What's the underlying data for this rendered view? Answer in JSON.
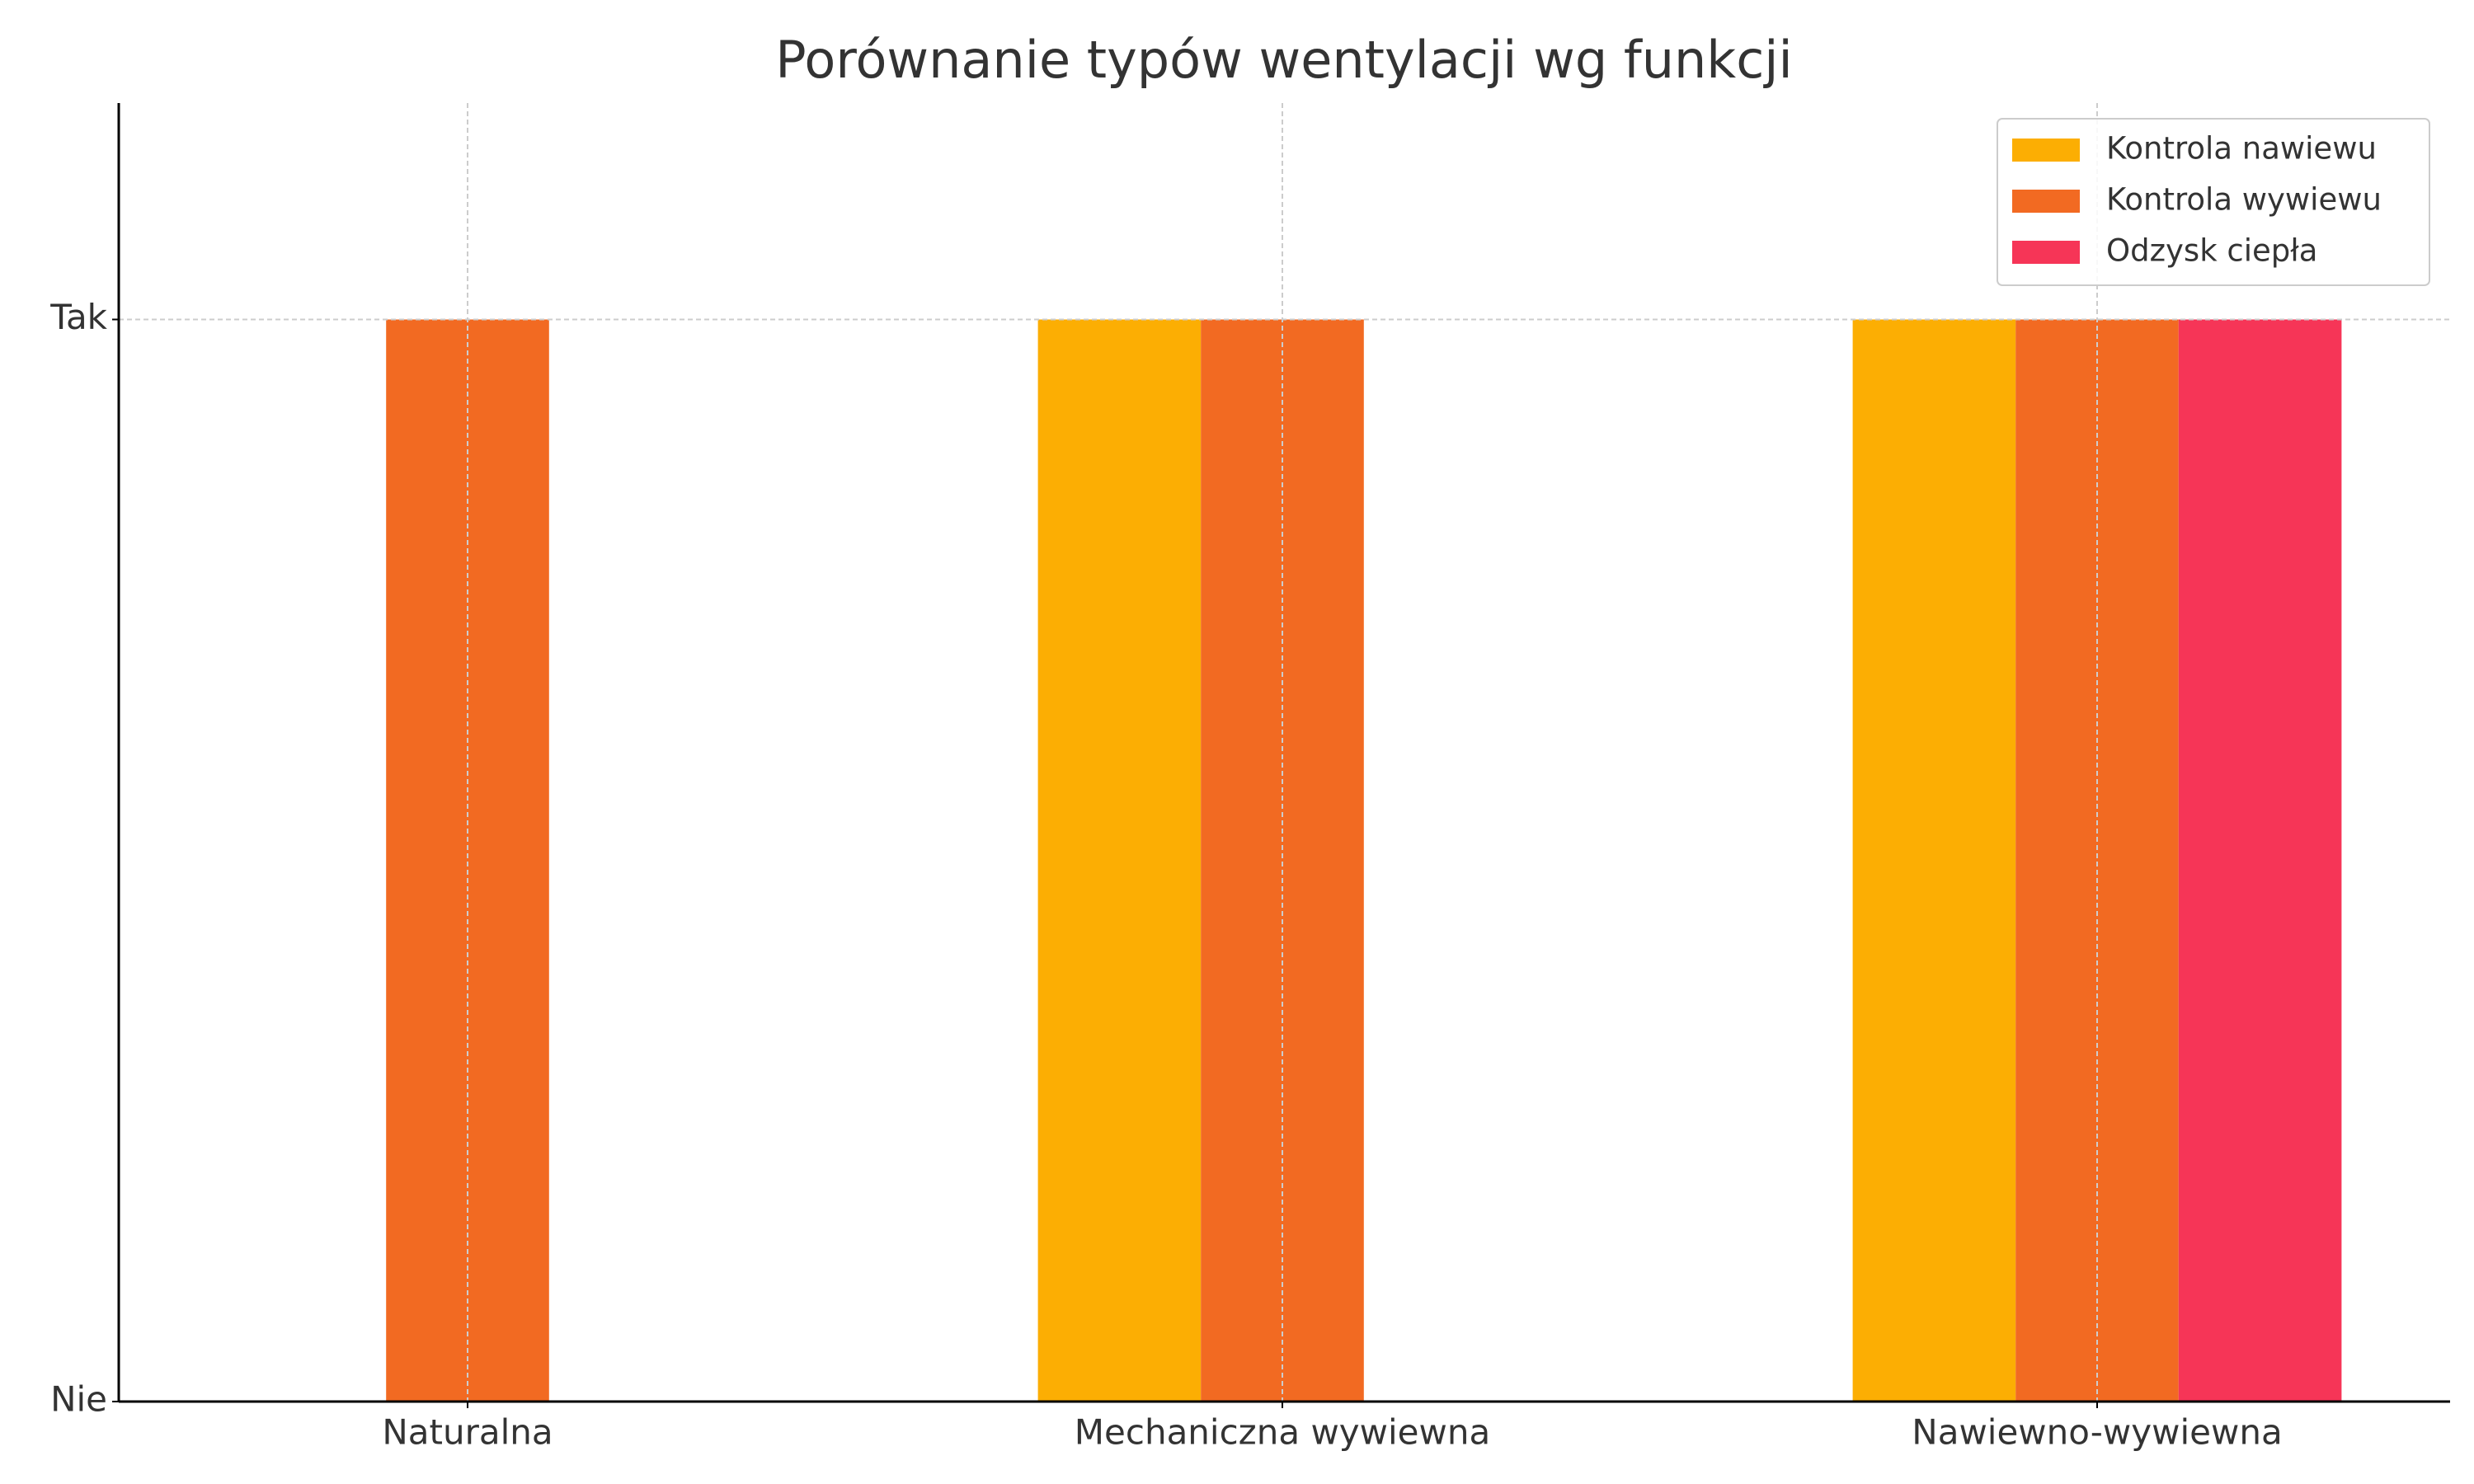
{
  "chart_data": {
    "type": "bar",
    "title": "Porównanie typów wentylacji wg funkcji",
    "categories": [
      "Naturalna",
      "Mechaniczna wywiewna",
      "Nawiewno-wywiewna"
    ],
    "series": [
      {
        "name": "Kontrola nawiewu",
        "color": "#fcae03",
        "values": [
          0,
          1,
          1
        ]
      },
      {
        "name": "Kontrola wywiewu",
        "color": "#f26a22",
        "values": [
          1,
          1,
          1
        ]
      },
      {
        "name": "Odzysk ciepła",
        "color": "#f63557",
        "values": [
          0,
          0,
          1
        ]
      }
    ],
    "ylim": [
      0,
      1.2
    ],
    "yticks": [
      {
        "value": 0,
        "label": "Nie"
      },
      {
        "value": 1,
        "label": "Tak"
      }
    ],
    "grid": true,
    "legend": "upper right"
  }
}
